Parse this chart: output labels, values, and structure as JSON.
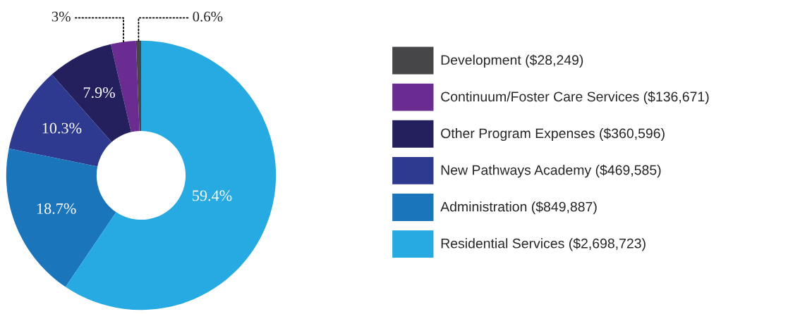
{
  "chart_data": {
    "type": "donut",
    "categories": [
      "Development ($28,249)",
      "Continuum/Foster Care Services ($136,671)",
      "Other Program Expenses ($360,596)",
      "New Pathways Academy ($469,585)",
      "Administration ($849,887)",
      "Residential Services ($2,698,723)"
    ],
    "values": [
      0.6,
      3,
      7.9,
      10.3,
      18.7,
      59.4
    ],
    "colors": [
      "#464648",
      "#6a2c90",
      "#24205e",
      "#2e3a8f",
      "#1b75bb",
      "#27aae1"
    ],
    "value_labels": [
      "0.6%",
      "3%",
      "7.9%",
      "10.3%",
      "18.7%",
      "59.4%"
    ],
    "legend": "right"
  }
}
